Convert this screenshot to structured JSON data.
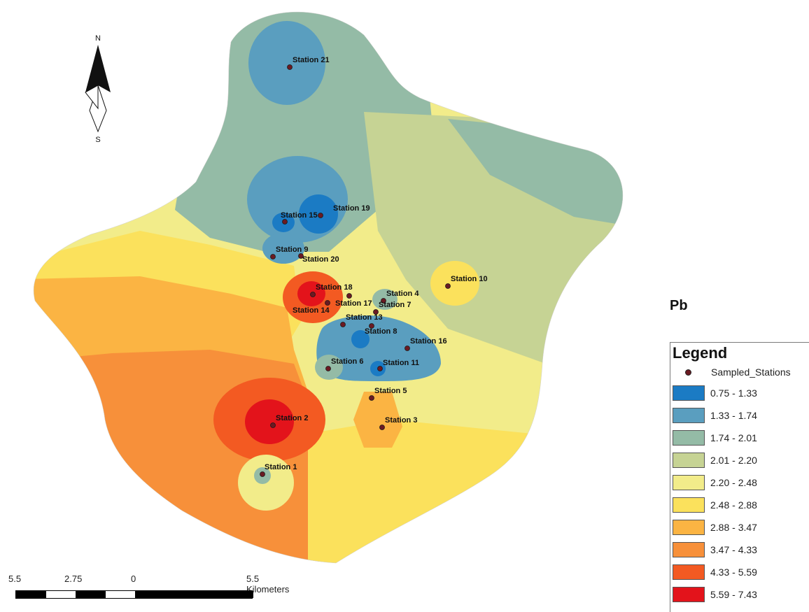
{
  "parameter": "Pb",
  "legend": {
    "title": "Legend",
    "point_label": "Sampled_Stations",
    "classes": [
      {
        "label": "0.75 - 1.33",
        "color": "#1b7bc4"
      },
      {
        "label": "1.33 - 1.74",
        "color": "#5a9ebf"
      },
      {
        "label": "1.74 - 2.01",
        "color": "#94bba6"
      },
      {
        "label": "2.01 - 2.20",
        "color": "#c6d394"
      },
      {
        "label": "2.20 - 2.48",
        "color": "#f2ec8a"
      },
      {
        "label": "2.48 - 2.88",
        "color": "#fbe15c"
      },
      {
        "label": "2.88 - 3.47",
        "color": "#fbb443"
      },
      {
        "label": "3.47 - 4.33",
        "color": "#f7903a"
      },
      {
        "label": "4.33 - 5.59",
        "color": "#f35a22"
      },
      {
        "label": "5.59 - 7.43",
        "color": "#e3131b"
      }
    ]
  },
  "north_arrow": {
    "top": "N",
    "bottom": "S"
  },
  "scale_bar": {
    "labels": [
      "5.5",
      "2.75",
      "0",
      "5.5 Kilometers"
    ]
  },
  "stations": [
    {
      "label": "Station 1"
    },
    {
      "label": "Station 2"
    },
    {
      "label": "Station 3"
    },
    {
      "label": "Station 4"
    },
    {
      "label": "Station 5"
    },
    {
      "label": "Station 6"
    },
    {
      "label": "Station 7"
    },
    {
      "label": "Station 8"
    },
    {
      "label": "Station 9"
    },
    {
      "label": "Station 10"
    },
    {
      "label": "Station 11"
    },
    {
      "label": "Station 13"
    },
    {
      "label": "Station 14"
    },
    {
      "label": "Station 15"
    },
    {
      "label": "Station 16"
    },
    {
      "label": "Station 17"
    },
    {
      "label": "Station 18"
    },
    {
      "label": "Station 19"
    },
    {
      "label": "Station 20"
    },
    {
      "label": "Station 21"
    }
  ]
}
